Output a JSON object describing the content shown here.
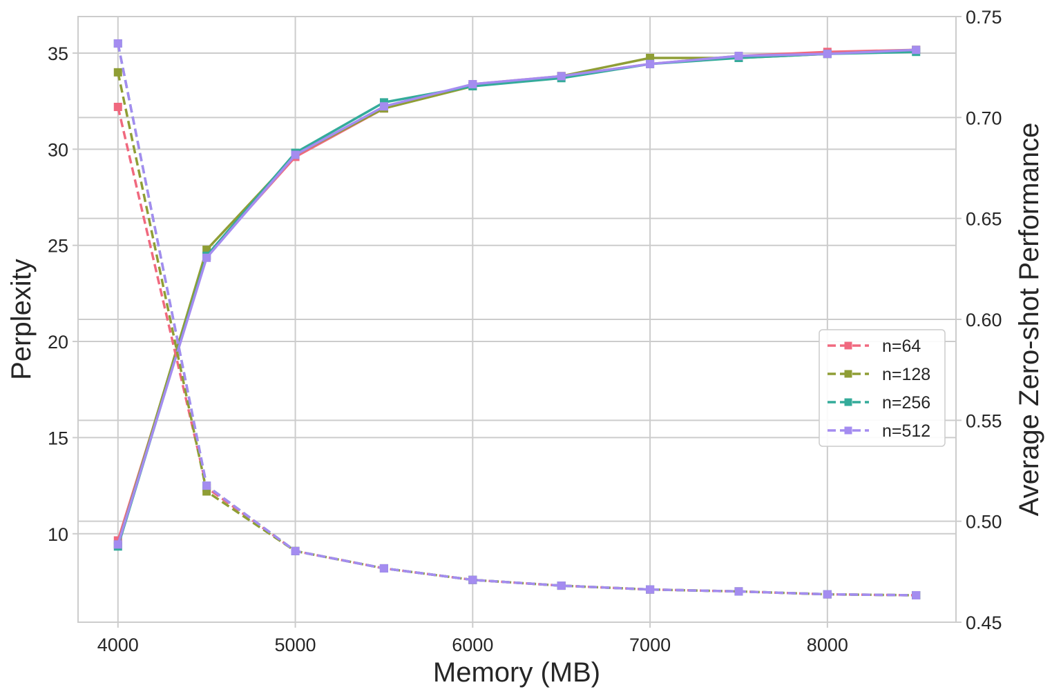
{
  "chart_data": {
    "type": "line",
    "xlabel": "Memory (MB)",
    "ylabel_left": "Perplexity",
    "ylabel_right": "Average Zero-shot Performance",
    "x": [
      4000,
      4500,
      5000,
      5500,
      6000,
      6500,
      7000,
      7500,
      8000,
      8500
    ],
    "xlim": [
      3775,
      8725
    ],
    "xticks": [
      4000,
      5000,
      6000,
      7000,
      8000
    ],
    "ylim_left": [
      5.4,
      36.9
    ],
    "yticks_left": [
      10,
      15,
      20,
      25,
      30,
      35
    ],
    "ylim_right": [
      0.45,
      0.75
    ],
    "yticks_right": [
      "0.45",
      "0.50",
      "0.55",
      "0.60",
      "0.65",
      "0.70",
      "0.75"
    ],
    "grid": true,
    "legend_position": "center-right",
    "series": [
      {
        "name": "n=64",
        "color": "#f0697f",
        "perplexity": [
          32.2,
          12.4,
          9.1,
          8.2,
          7.6,
          7.3,
          7.1,
          7.0,
          6.85,
          6.8
        ],
        "zero_shot": [
          0.4905,
          0.6315,
          0.6805,
          0.7045,
          0.7165,
          0.7205,
          0.7265,
          0.7305,
          0.7325,
          0.7335
        ]
      },
      {
        "name": "n=128",
        "color": "#8f9e35",
        "perplexity": [
          34.0,
          12.2,
          9.1,
          8.2,
          7.6,
          7.3,
          7.1,
          7.0,
          6.85,
          6.8
        ],
        "zero_shot": [
          0.4885,
          0.6345,
          0.6815,
          0.7045,
          0.7155,
          0.7205,
          0.7295,
          0.7295,
          0.7315,
          0.7335
        ]
      },
      {
        "name": "n=256",
        "color": "#34ab9a",
        "perplexity": [
          35.5,
          12.5,
          9.1,
          8.2,
          7.6,
          7.3,
          7.1,
          7.0,
          6.85,
          6.8
        ],
        "zero_shot": [
          0.4875,
          0.6315,
          0.6825,
          0.7075,
          0.7155,
          0.7195,
          0.7265,
          0.7295,
          0.7315,
          0.7325
        ]
      },
      {
        "name": "n=512",
        "color": "#a48cf0",
        "perplexity": [
          35.5,
          12.5,
          9.1,
          8.2,
          7.6,
          7.3,
          7.1,
          7.0,
          6.85,
          6.8
        ],
        "zero_shot": [
          0.4885,
          0.6305,
          0.6815,
          0.7055,
          0.7165,
          0.7205,
          0.7265,
          0.7305,
          0.7315,
          0.7335
        ]
      }
    ]
  }
}
